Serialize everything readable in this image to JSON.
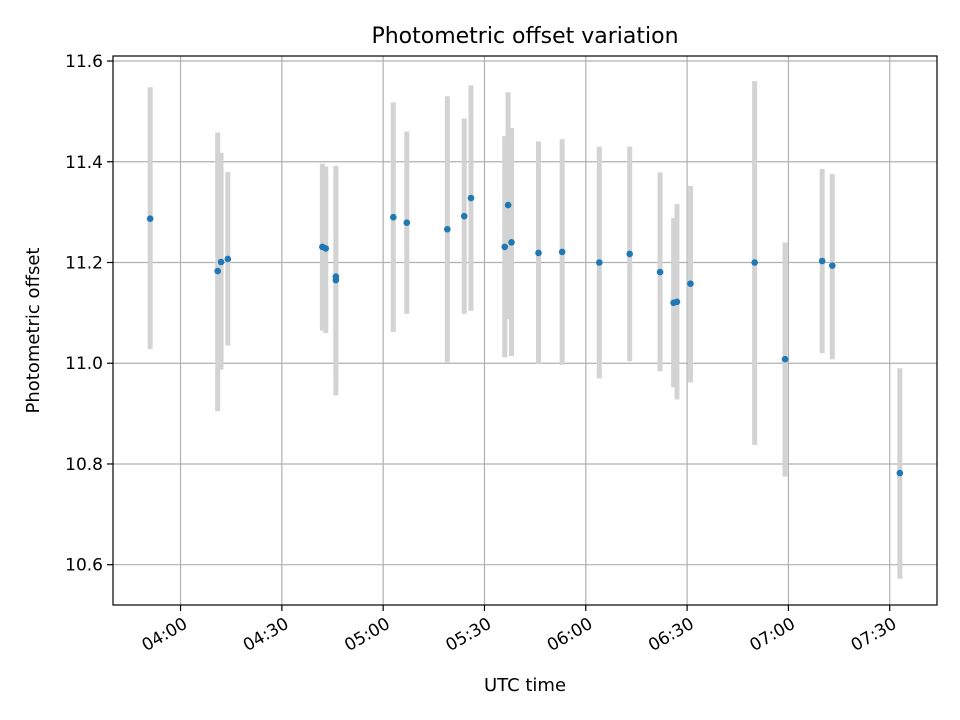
{
  "chart_data": {
    "type": "scatter",
    "title": "Photometric offset variation",
    "xlabel": "UTC time",
    "ylabel": "Photometric offset",
    "x_axis": {
      "kind": "time",
      "range": [
        "03:40",
        "07:44"
      ],
      "ticks": [
        "04:00",
        "04:30",
        "05:00",
        "05:30",
        "06:00",
        "06:30",
        "07:00",
        "07:30"
      ],
      "tick_label_rotation": 30
    },
    "y_axis": {
      "range": [
        10.52,
        11.61
      ],
      "ticks": [
        10.6,
        10.8,
        11.0,
        11.2,
        11.4,
        11.6
      ],
      "tick_labels": [
        "10.6",
        "10.8",
        "11.0",
        "11.2",
        "11.4",
        "11.6"
      ]
    },
    "grid": true,
    "point_color": "#1f77b4",
    "errorbar_color": "#d3d3d3",
    "points": [
      {
        "time": "03:51",
        "y": 11.287,
        "err_low": 11.028,
        "err_high": 11.548
      },
      {
        "time": "04:11",
        "y": 11.183,
        "err_low": 10.905,
        "err_high": 11.458
      },
      {
        "time": "04:12",
        "y": 11.201,
        "err_low": 10.987,
        "err_high": 11.418
      },
      {
        "time": "04:14",
        "y": 11.207,
        "err_low": 11.035,
        "err_high": 11.38
      },
      {
        "time": "04:42",
        "y": 11.231,
        "err_low": 11.065,
        "err_high": 11.396
      },
      {
        "time": "04:43",
        "y": 11.228,
        "err_low": 11.06,
        "err_high": 11.39
      },
      {
        "time": "04:46",
        "y": 11.165,
        "err_low": 10.936,
        "err_high": 11.392
      },
      {
        "time": "04:46",
        "y": 11.172,
        "err_low": 10.97,
        "err_high": 11.376
      },
      {
        "time": "05:03",
        "y": 11.29,
        "err_low": 11.062,
        "err_high": 11.518
      },
      {
        "time": "05:07",
        "y": 11.279,
        "err_low": 11.098,
        "err_high": 11.46
      },
      {
        "time": "05:19",
        "y": 11.266,
        "err_low": 11.002,
        "err_high": 11.53
      },
      {
        "time": "05:24",
        "y": 11.292,
        "err_low": 11.098,
        "err_high": 11.486
      },
      {
        "time": "05:26",
        "y": 11.328,
        "err_low": 11.104,
        "err_high": 11.552
      },
      {
        "time": "05:36",
        "y": 11.231,
        "err_low": 11.012,
        "err_high": 11.451
      },
      {
        "time": "05:37",
        "y": 11.314,
        "err_low": 11.087,
        "err_high": 11.538
      },
      {
        "time": "05:38",
        "y": 11.24,
        "err_low": 11.014,
        "err_high": 11.467
      },
      {
        "time": "05:46",
        "y": 11.219,
        "err_low": 10.999,
        "err_high": 11.44
      },
      {
        "time": "05:53",
        "y": 11.221,
        "err_low": 10.997,
        "err_high": 11.445
      },
      {
        "time": "06:04",
        "y": 11.2,
        "err_low": 10.97,
        "err_high": 11.43
      },
      {
        "time": "06:13",
        "y": 11.217,
        "err_low": 11.004,
        "err_high": 11.43
      },
      {
        "time": "06:22",
        "y": 11.181,
        "err_low": 10.984,
        "err_high": 11.379
      },
      {
        "time": "06:26",
        "y": 11.12,
        "err_low": 10.952,
        "err_high": 11.288
      },
      {
        "time": "06:27",
        "y": 11.122,
        "err_low": 10.928,
        "err_high": 11.316
      },
      {
        "time": "06:31",
        "y": 11.158,
        "err_low": 10.962,
        "err_high": 11.352
      },
      {
        "time": "06:50",
        "y": 11.2,
        "err_low": 10.838,
        "err_high": 11.56
      },
      {
        "time": "06:59",
        "y": 11.008,
        "err_low": 10.775,
        "err_high": 11.24
      },
      {
        "time": "07:10",
        "y": 11.203,
        "err_low": 11.02,
        "err_high": 11.386
      },
      {
        "time": "07:13",
        "y": 11.194,
        "err_low": 11.008,
        "err_high": 11.376
      },
      {
        "time": "07:33",
        "y": 10.782,
        "err_low": 10.572,
        "err_high": 10.99
      }
    ]
  }
}
